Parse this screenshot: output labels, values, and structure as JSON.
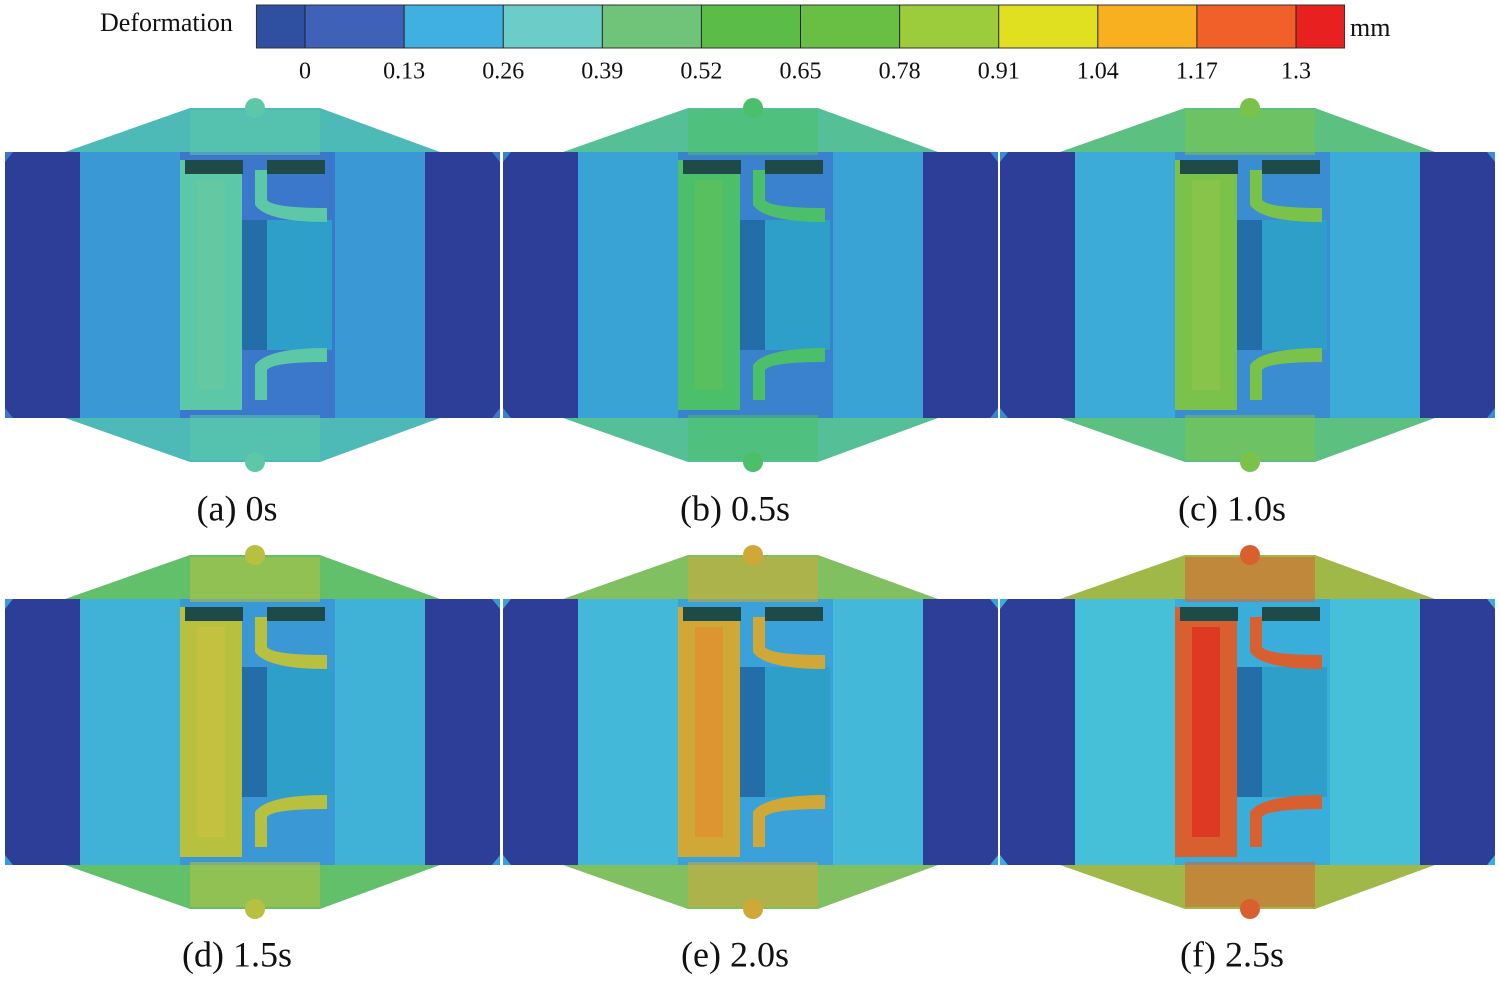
{
  "colorbar": {
    "title": "Deformation",
    "unit": "mm",
    "ticks": [
      0,
      0.13,
      0.26,
      0.39,
      0.52,
      0.65,
      0.78,
      0.91,
      1.04,
      1.17,
      1.3
    ],
    "colors": [
      "#2f4fa0",
      "#3f62b8",
      "#3fb0e0",
      "#6cccc8",
      "#70c47a",
      "#5cbc48",
      "#68bf44",
      "#9ccb3c",
      "#e0e020",
      "#f8b020",
      "#f06028",
      "#e82020"
    ]
  },
  "panels": [
    {
      "label": "(a) 0s"
    },
    {
      "label": "(b) 0.5s"
    },
    {
      "label": "(c) 1.0s"
    },
    {
      "label": "(d) 1.5s"
    },
    {
      "label": "(e) 2.0s"
    },
    {
      "label": "(f) 2.5s"
    }
  ]
}
